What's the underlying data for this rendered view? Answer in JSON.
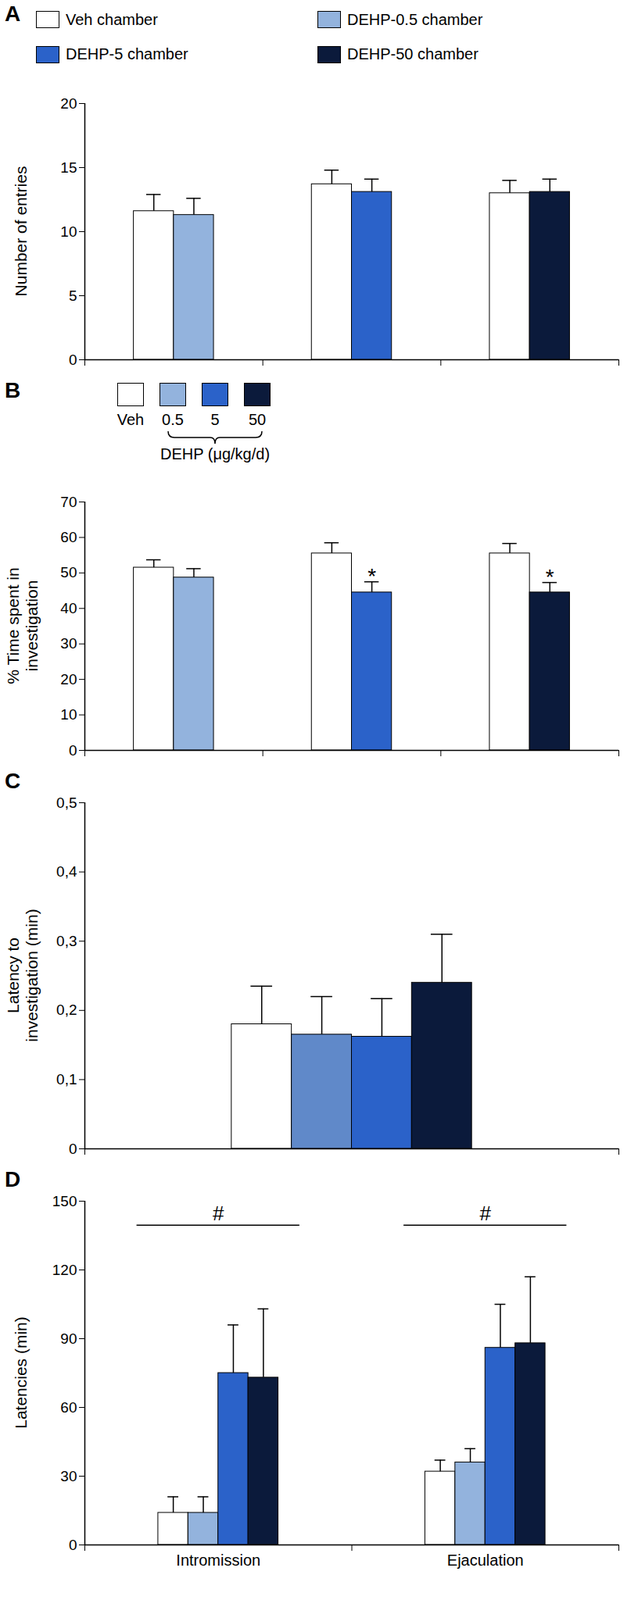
{
  "chart_data": [
    {
      "type": "bar",
      "panel_label": "A",
      "y_label": "Number of entries",
      "categories": [
        null,
        null,
        null
      ],
      "series": [
        {
          "name": "Veh chamber",
          "color": "#ffffff",
          "values": [
            11.6,
            13.7,
            13.0
          ],
          "errors": [
            1.3,
            1.1,
            1.0
          ]
        },
        {
          "name": "DEHP-0.5 chamber",
          "color": "#93b3dd",
          "values": [
            11.3,
            null,
            null
          ],
          "errors": [
            1.3,
            null,
            null
          ]
        },
        {
          "name": "DEHP-5 chamber",
          "color": "#2b62c9",
          "values": [
            null,
            13.1,
            null
          ],
          "errors": [
            null,
            1.0,
            null
          ]
        },
        {
          "name": "DEHP-50 chamber",
          "color": "#0b1a3b",
          "values": [
            null,
            null,
            13.1
          ],
          "errors": [
            null,
            null,
            1.0
          ]
        }
      ],
      "ylim": [
        0,
        20
      ],
      "yticks": [
        0,
        5,
        10,
        15,
        20
      ],
      "legend": "top"
    },
    {
      "type": "bar",
      "panel_label": "B",
      "y_label": "% Time spent in investigation",
      "legend_title": "DEHP (μg/kg/d)",
      "categories": [
        null,
        null,
        null
      ],
      "series": [
        {
          "name": "Veh",
          "color": "#ffffff",
          "values": [
            51.5,
            55.5,
            55.5
          ],
          "errors": [
            2.2,
            3.0,
            2.8
          ]
        },
        {
          "name": "0.5",
          "color": "#93b3dd",
          "values": [
            48.7,
            null,
            null
          ],
          "errors": [
            2.5,
            null,
            null
          ]
        },
        {
          "name": "5",
          "color": "#2b62c9",
          "values": [
            null,
            44.5,
            null
          ],
          "errors": [
            null,
            3.0,
            null
          ]
        },
        {
          "name": "50",
          "color": "#0b1a3b",
          "values": [
            null,
            null,
            44.5
          ],
          "errors": [
            null,
            null,
            2.8
          ]
        }
      ],
      "annotations": [
        {
          "text": "*",
          "series": "5",
          "category_index": 1
        },
        {
          "text": "*",
          "series": "50",
          "category_index": 2
        }
      ],
      "ylim": [
        0,
        70
      ],
      "yticks": [
        0,
        10,
        20,
        30,
        40,
        50,
        60,
        70
      ],
      "legend": "top"
    },
    {
      "type": "bar",
      "panel_label": "C",
      "y_label": "Latency to investigation (min)",
      "categories": [
        null
      ],
      "series": [
        {
          "color": "#ffffff",
          "values": [
            0.18
          ],
          "errors": [
            0.055
          ]
        },
        {
          "color": "#6089c9",
          "values": [
            0.165
          ],
          "errors": [
            0.055
          ]
        },
        {
          "color": "#2b62c9",
          "values": [
            0.162
          ],
          "errors": [
            0.055
          ]
        },
        {
          "color": "#0b1a3b",
          "values": [
            0.24
          ],
          "errors": [
            0.07
          ]
        }
      ],
      "ylim": [
        0,
        0.5
      ],
      "yticks": [
        0,
        {
          "value": 0.1,
          "label": "0,1"
        },
        {
          "value": 0.2,
          "label": "0,2"
        },
        {
          "value": 0.3,
          "label": "0,3"
        },
        {
          "value": 0.4,
          "label": "0,4"
        },
        {
          "value": 0.5,
          "label": "0,5"
        }
      ]
    },
    {
      "type": "bar",
      "panel_label": "D",
      "y_label": "Latencies (min)",
      "categories": [
        "Intromission",
        "Ejaculation"
      ],
      "series": [
        {
          "color": "#ffffff",
          "values": [
            14,
            32
          ],
          "errors": [
            7,
            5
          ]
        },
        {
          "color": "#93b3dd",
          "values": [
            14,
            36
          ],
          "errors": [
            7,
            6
          ]
        },
        {
          "color": "#2b62c9",
          "values": [
            75,
            86
          ],
          "errors": [
            21,
            19
          ]
        },
        {
          "color": "#0b1a3b",
          "values": [
            73,
            88
          ],
          "errors": [
            30,
            29
          ]
        }
      ],
      "annotations": [
        {
          "text": "#",
          "category_index": 0
        },
        {
          "text": "#",
          "category_index": 1
        }
      ],
      "ylim": [
        0,
        150
      ],
      "yticks": [
        0,
        30,
        60,
        90,
        120,
        150
      ]
    }
  ]
}
